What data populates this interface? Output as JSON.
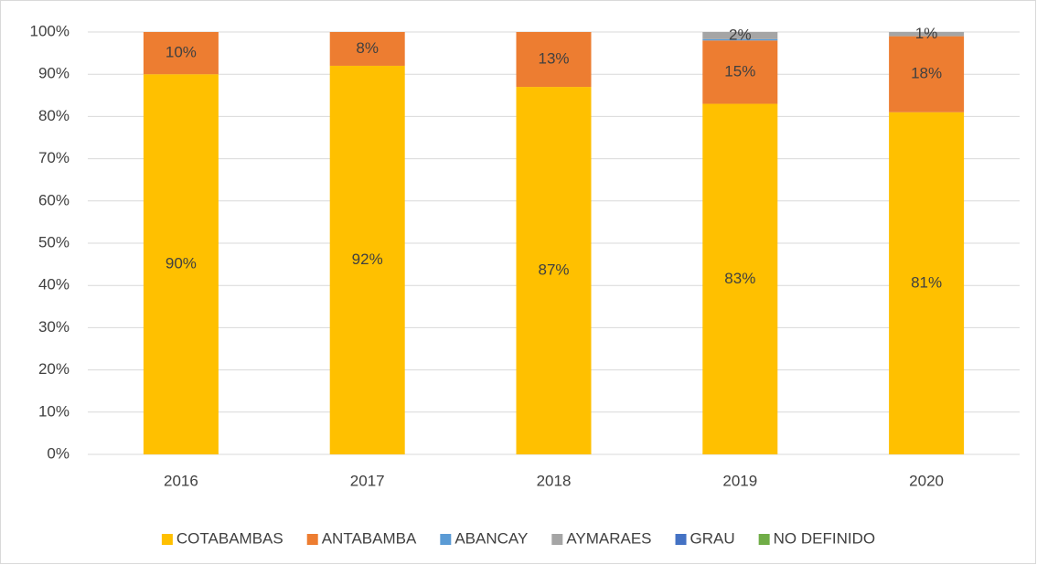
{
  "chart_data": {
    "type": "stacked_bar",
    "categories": [
      "2016",
      "2017",
      "2018",
      "2019",
      "2020"
    ],
    "series": [
      {
        "name": "COTABAMBAS",
        "color": "#FFC000",
        "values": [
          90,
          92,
          87,
          83,
          81
        ],
        "value_labels": [
          "90%",
          "92%",
          "87%",
          "83%",
          "81%"
        ]
      },
      {
        "name": "ANTABAMBA",
        "color": "#ED7D31",
        "values": [
          10,
          8,
          13,
          15,
          18
        ],
        "value_labels": [
          "10%",
          "8%",
          "13%",
          "15%",
          "18%"
        ]
      },
      {
        "name": "ABANCAY",
        "color": "#5B9BD5",
        "values": [
          0,
          0,
          0,
          0.3,
          0
        ]
      },
      {
        "name": "AYMARAES",
        "color": "#A5A5A5",
        "values": [
          0,
          0,
          0,
          1.7,
          1
        ],
        "value_labels": [
          null,
          null,
          null,
          "2%",
          "1%"
        ]
      },
      {
        "name": "GRAU",
        "color": "#4472C4",
        "values": [
          0,
          0,
          0,
          0,
          0
        ]
      },
      {
        "name": "NO DEFINIDO",
        "color": "#70AD47",
        "values": [
          0,
          0,
          0,
          0,
          0
        ]
      }
    ],
    "ylim": [
      0,
      100
    ],
    "yticks": [
      {
        "value": 0,
        "label": "0%"
      },
      {
        "value": 10,
        "label": "10%"
      },
      {
        "value": 20,
        "label": "20%"
      },
      {
        "value": 30,
        "label": "30%"
      },
      {
        "value": 40,
        "label": "40%"
      },
      {
        "value": 50,
        "label": "50%"
      },
      {
        "value": 60,
        "label": "60%"
      },
      {
        "value": 70,
        "label": "70%"
      },
      {
        "value": 80,
        "label": "80%"
      },
      {
        "value": 90,
        "label": "90%"
      },
      {
        "value": 100,
        "label": "100%"
      }
    ],
    "grid": true,
    "legend": "bottom"
  }
}
